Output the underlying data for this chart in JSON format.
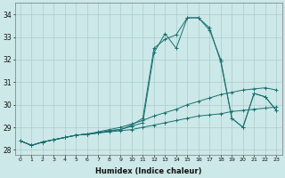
{
  "xlabel": "Humidex (Indice chaleur)",
  "bg_color": "#cce8e8",
  "grid_color": "#aacccc",
  "line_color": "#1a7070",
  "xlim": [
    -0.5,
    23.5
  ],
  "ylim": [
    27.8,
    34.5
  ],
  "xticks": [
    0,
    1,
    2,
    3,
    4,
    5,
    6,
    7,
    8,
    9,
    10,
    11,
    12,
    13,
    14,
    15,
    16,
    17,
    18,
    19,
    20,
    21,
    22,
    23
  ],
  "yticks": [
    28,
    29,
    30,
    31,
    32,
    33,
    34
  ],
  "line1": [
    28.4,
    28.2,
    28.35,
    28.45,
    28.55,
    28.65,
    28.7,
    28.75,
    28.8,
    28.85,
    28.9,
    29.0,
    29.1,
    29.2,
    29.3,
    29.4,
    29.5,
    29.55,
    29.6,
    29.7,
    29.75,
    29.8,
    29.85,
    29.9
  ],
  "line2": [
    28.4,
    28.2,
    28.35,
    28.45,
    28.55,
    28.65,
    28.7,
    28.8,
    28.9,
    29.0,
    29.15,
    29.3,
    29.5,
    29.65,
    29.8,
    30.0,
    30.15,
    30.3,
    30.45,
    30.55,
    30.65,
    30.7,
    30.75,
    30.65
  ],
  "line3": [
    28.4,
    28.2,
    28.35,
    28.45,
    28.55,
    28.65,
    28.7,
    28.75,
    28.85,
    28.9,
    29.1,
    29.4,
    32.5,
    32.9,
    33.1,
    33.85,
    33.85,
    33.4,
    31.9,
    29.4,
    29.0,
    30.5,
    30.35,
    29.75
  ],
  "line4": [
    28.4,
    28.2,
    28.35,
    28.45,
    28.55,
    28.65,
    28.7,
    28.75,
    28.85,
    28.9,
    29.05,
    29.2,
    32.3,
    33.15,
    32.5,
    33.85,
    33.85,
    33.3,
    32.0,
    29.4,
    29.0,
    30.5,
    30.35,
    29.75
  ]
}
